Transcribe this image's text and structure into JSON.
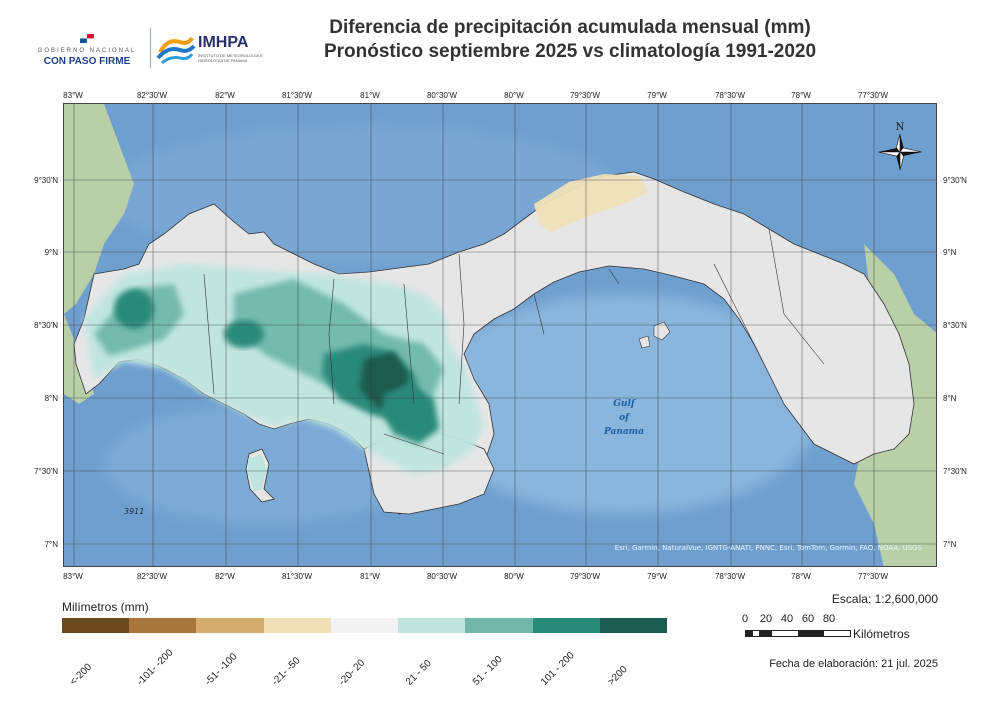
{
  "header": {
    "title_line1": "Diferencia de precipitación acumulada mensual (mm)",
    "title_line2": "Pronóstico septiembre 2025 vs climatología 1991-2020",
    "gov_logo_small": "GOBIERNO NACIONAL",
    "gov_logo_big": "CON PASO FIRME",
    "imhpa_logo": "IMHPA",
    "imhpa_logo_sub": "INSTITUTO DE METEOROLOGÍA E HIDROLOGÍA DE PANAMÁ"
  },
  "map": {
    "lon_ticks": [
      "83°W",
      "82°30'W",
      "82°W",
      "81°30'W",
      "81°W",
      "80°30'W",
      "80°W",
      "79°30'W",
      "79°W",
      "78°30'W",
      "78°W",
      "77°30'W"
    ],
    "lat_ticks": [
      "9°30'N",
      "9°N",
      "8°30'N",
      "8°N",
      "7°30'N",
      "7°N"
    ],
    "gulf_label": [
      "Gulf",
      "of",
      "Panama"
    ],
    "depth_label": "3911",
    "north_label": "N",
    "attribution": "Esri, Garmin, NaturalVue, IGNTG-ANATI, PNNC, Esri, TomTom, Garmin, FAO, NOAA, USGS",
    "colors": {
      "ocean": "#6f9fcf",
      "land": "#e6e6e6",
      "surrounding_land": "#b9cfa8"
    }
  },
  "legend": {
    "title": "Milímetros (mm)",
    "classes": [
      {
        "label": "<-200",
        "color": "#6b4a1e"
      },
      {
        "label": "-101- -200",
        "color": "#a8763c"
      },
      {
        "label": "-51- -100",
        "color": "#d4ad6e"
      },
      {
        "label": "-21- -50",
        "color": "#efe0b8"
      },
      {
        "label": "-20- 20",
        "color": "#f2f2f2"
      },
      {
        "label": "21 - 50",
        "color": "#bfe5de"
      },
      {
        "label": "51 - 100",
        "color": "#6fb8ab"
      },
      {
        "label": "101 - 200",
        "color": "#2a8a7a"
      },
      {
        "label": ">200",
        "color": "#1b5a4e"
      }
    ]
  },
  "scale": {
    "label": "Escala: 1:2,600,000",
    "ticks": [
      "0",
      "20",
      "40",
      "60",
      "80"
    ],
    "units": "Kilómetros"
  },
  "footer": {
    "date": "Fecha de elaboración: 21 jul. 2025"
  }
}
